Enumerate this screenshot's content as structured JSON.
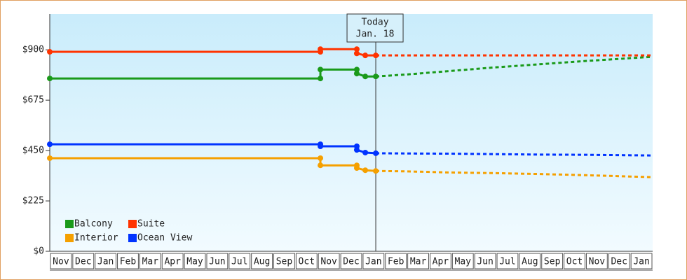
{
  "chart_data": {
    "type": "line",
    "categories": [
      "Nov",
      "Dec",
      "Jan",
      "Feb",
      "Mar",
      "Apr",
      "May",
      "Jun",
      "Jul",
      "Aug",
      "Sep",
      "Oct",
      "Nov",
      "Dec",
      "Jan",
      "Feb",
      "Mar",
      "Apr",
      "May",
      "Jun",
      "Jul",
      "Aug",
      "Sep",
      "Oct",
      "Nov",
      "Dec",
      "Jan"
    ],
    "xlim": [
      0,
      27
    ],
    "ylim": [
      0,
      1060
    ],
    "yticks": [
      {
        "value": 0,
        "label": "$0"
      },
      {
        "value": 225,
        "label": "$225"
      },
      {
        "value": 450,
        "label": "$450"
      },
      {
        "value": 675,
        "label": "$675"
      },
      {
        "value": 900,
        "label": "$900"
      }
    ],
    "grid": false,
    "legend": "bottom-left",
    "annotation": {
      "x": 14.6,
      "lines": [
        "Today",
        "Jan. 18"
      ]
    },
    "series": [
      {
        "name": "Balcony",
        "color": "#1a9a1a",
        "x": [
          0,
          12.12,
          12.12,
          13.75,
          13.75,
          14.13,
          14.6
        ],
        "values": [
          772,
          772,
          812,
          812,
          794,
          781,
          781
        ],
        "forecast_x": [
          14.6,
          16,
          18,
          20,
          22,
          24,
          27
        ],
        "forecast_values": [
          781,
          790,
          806,
          822,
          836,
          850,
          869
        ]
      },
      {
        "name": "Suite",
        "color": "#ff3300",
        "x": [
          0,
          12.12,
          12.12,
          13.75,
          13.75,
          14.13,
          14.6
        ],
        "values": [
          891,
          891,
          903,
          903,
          884,
          875,
          875
        ],
        "forecast_x": [
          14.6,
          27
        ],
        "forecast_values": [
          875,
          875
        ]
      },
      {
        "name": "Interior",
        "color": "#f5a000",
        "x": [
          0,
          12.12,
          12.12,
          13.75,
          13.75,
          14.13,
          14.6
        ],
        "values": [
          416,
          416,
          384,
          384,
          372,
          362,
          359
        ],
        "forecast_x": [
          14.6,
          16,
          18,
          20,
          22,
          24,
          27
        ],
        "forecast_values": [
          359,
          357,
          352,
          349,
          345,
          340,
          331
        ]
      },
      {
        "name": "Ocean View",
        "color": "#0033ff",
        "x": [
          0,
          12.12,
          12.12,
          13.75,
          13.75,
          14.13,
          14.6
        ],
        "values": [
          478,
          478,
          469,
          469,
          453,
          441,
          438
        ],
        "forecast_x": [
          14.6,
          16,
          18,
          20,
          22,
          24,
          27
        ],
        "forecast_values": [
          438,
          437,
          436,
          434,
          432,
          431,
          428
        ]
      }
    ]
  }
}
